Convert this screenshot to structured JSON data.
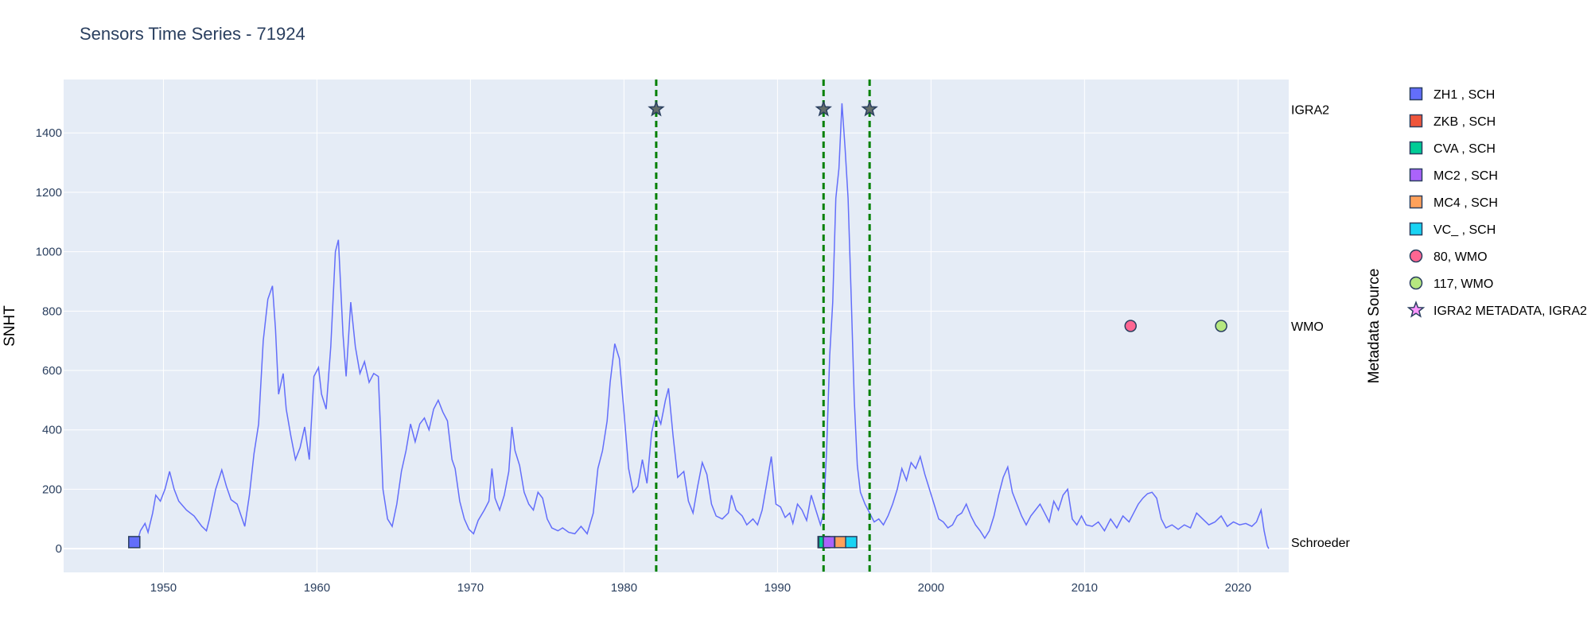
{
  "chart_data": {
    "type": "line",
    "title": "Sensors Time Series - 71924",
    "xlabel": "",
    "ylabel": "SNHT",
    "ylabel_right": "Metadata Source",
    "xlim": [
      1943.5,
      2023.3
    ],
    "ylim": [
      -80,
      1580
    ],
    "x_ticks": [
      1950,
      1960,
      1970,
      1980,
      1990,
      2000,
      2010,
      2020
    ],
    "y_ticks": [
      0,
      200,
      400,
      600,
      800,
      1000,
      1200,
      1400
    ],
    "grid": true,
    "legend_position": "right",
    "source_categories": [
      {
        "label": "IGRA2",
        "y": 1480
      },
      {
        "label": "WMO",
        "y": 750
      },
      {
        "label": "Schroeder",
        "y": 22
      }
    ],
    "series": [
      {
        "name": "SNHT",
        "color": "#636efa",
        "points": [
          [
            1947.9,
            20
          ],
          [
            1948.2,
            5
          ],
          [
            1948.5,
            60
          ],
          [
            1948.8,
            85
          ],
          [
            1949.0,
            55
          ],
          [
            1949.3,
            120
          ],
          [
            1949.5,
            180
          ],
          [
            1949.8,
            160
          ],
          [
            1950.1,
            200
          ],
          [
            1950.4,
            260
          ],
          [
            1950.7,
            200
          ],
          [
            1951.0,
            160
          ],
          [
            1951.5,
            130
          ],
          [
            1952.0,
            110
          ],
          [
            1952.5,
            75
          ],
          [
            1952.8,
            60
          ],
          [
            1953.0,
            100
          ],
          [
            1953.4,
            200
          ],
          [
            1953.8,
            265
          ],
          [
            1954.1,
            210
          ],
          [
            1954.4,
            165
          ],
          [
            1954.8,
            150
          ],
          [
            1955.0,
            120
          ],
          [
            1955.3,
            75
          ],
          [
            1955.6,
            180
          ],
          [
            1955.9,
            320
          ],
          [
            1956.2,
            420
          ],
          [
            1956.5,
            700
          ],
          [
            1956.8,
            840
          ],
          [
            1957.1,
            885
          ],
          [
            1957.3,
            740
          ],
          [
            1957.5,
            520
          ],
          [
            1957.8,
            590
          ],
          [
            1958.0,
            470
          ],
          [
            1958.3,
            380
          ],
          [
            1958.6,
            300
          ],
          [
            1958.9,
            340
          ],
          [
            1959.2,
            410
          ],
          [
            1959.5,
            300
          ],
          [
            1959.8,
            580
          ],
          [
            1960.1,
            610
          ],
          [
            1960.3,
            520
          ],
          [
            1960.6,
            470
          ],
          [
            1960.9,
            680
          ],
          [
            1961.2,
            1000
          ],
          [
            1961.4,
            1040
          ],
          [
            1961.7,
            720
          ],
          [
            1961.9,
            580
          ],
          [
            1962.2,
            830
          ],
          [
            1962.5,
            680
          ],
          [
            1962.8,
            590
          ],
          [
            1963.1,
            630
          ],
          [
            1963.4,
            560
          ],
          [
            1963.7,
            590
          ],
          [
            1964.0,
            580
          ],
          [
            1964.3,
            200
          ],
          [
            1964.6,
            100
          ],
          [
            1964.9,
            75
          ],
          [
            1965.2,
            150
          ],
          [
            1965.5,
            260
          ],
          [
            1965.8,
            330
          ],
          [
            1966.1,
            420
          ],
          [
            1966.4,
            360
          ],
          [
            1966.7,
            420
          ],
          [
            1967.0,
            440
          ],
          [
            1967.3,
            400
          ],
          [
            1967.6,
            470
          ],
          [
            1967.9,
            500
          ],
          [
            1968.2,
            460
          ],
          [
            1968.5,
            430
          ],
          [
            1968.8,
            300
          ],
          [
            1969.0,
            270
          ],
          [
            1969.3,
            160
          ],
          [
            1969.6,
            100
          ],
          [
            1969.9,
            65
          ],
          [
            1970.2,
            50
          ],
          [
            1970.5,
            95
          ],
          [
            1970.9,
            130
          ],
          [
            1971.2,
            160
          ],
          [
            1971.4,
            270
          ],
          [
            1971.6,
            170
          ],
          [
            1971.9,
            130
          ],
          [
            1972.2,
            180
          ],
          [
            1972.5,
            260
          ],
          [
            1972.7,
            410
          ],
          [
            1972.9,
            330
          ],
          [
            1973.2,
            280
          ],
          [
            1973.5,
            190
          ],
          [
            1973.8,
            150
          ],
          [
            1974.1,
            130
          ],
          [
            1974.4,
            190
          ],
          [
            1974.7,
            170
          ],
          [
            1975.0,
            100
          ],
          [
            1975.3,
            70
          ],
          [
            1975.7,
            60
          ],
          [
            1976.0,
            70
          ],
          [
            1976.4,
            55
          ],
          [
            1976.8,
            50
          ],
          [
            1977.2,
            75
          ],
          [
            1977.6,
            50
          ],
          [
            1978.0,
            120
          ],
          [
            1978.3,
            270
          ],
          [
            1978.6,
            330
          ],
          [
            1978.9,
            430
          ],
          [
            1979.1,
            560
          ],
          [
            1979.4,
            690
          ],
          [
            1979.7,
            640
          ],
          [
            1980.0,
            460
          ],
          [
            1980.3,
            270
          ],
          [
            1980.6,
            190
          ],
          [
            1980.9,
            210
          ],
          [
            1981.2,
            300
          ],
          [
            1981.5,
            220
          ],
          [
            1981.8,
            390
          ],
          [
            1982.1,
            460
          ],
          [
            1982.4,
            420
          ],
          [
            1982.7,
            500
          ],
          [
            1982.9,
            540
          ],
          [
            1983.2,
            380
          ],
          [
            1983.5,
            240
          ],
          [
            1983.9,
            260
          ],
          [
            1984.2,
            160
          ],
          [
            1984.5,
            120
          ],
          [
            1984.8,
            210
          ],
          [
            1985.1,
            290
          ],
          [
            1985.4,
            250
          ],
          [
            1985.7,
            150
          ],
          [
            1986.0,
            110
          ],
          [
            1986.4,
            100
          ],
          [
            1986.8,
            120
          ],
          [
            1987.0,
            180
          ],
          [
            1987.3,
            130
          ],
          [
            1987.7,
            110
          ],
          [
            1988.0,
            80
          ],
          [
            1988.4,
            100
          ],
          [
            1988.7,
            80
          ],
          [
            1989.0,
            130
          ],
          [
            1989.3,
            220
          ],
          [
            1989.6,
            310
          ],
          [
            1989.9,
            150
          ],
          [
            1990.2,
            140
          ],
          [
            1990.5,
            105
          ],
          [
            1990.8,
            120
          ],
          [
            1991.0,
            85
          ],
          [
            1991.3,
            150
          ],
          [
            1991.6,
            130
          ],
          [
            1991.9,
            95
          ],
          [
            1992.2,
            180
          ],
          [
            1992.5,
            130
          ],
          [
            1992.8,
            80
          ],
          [
            1993.0,
            120
          ],
          [
            1993.2,
            330
          ],
          [
            1993.4,
            650
          ],
          [
            1993.6,
            830
          ],
          [
            1993.8,
            1180
          ],
          [
            1994.0,
            1280
          ],
          [
            1994.2,
            1500
          ],
          [
            1994.4,
            1350
          ],
          [
            1994.6,
            1180
          ],
          [
            1994.8,
            850
          ],
          [
            1995.0,
            500
          ],
          [
            1995.2,
            280
          ],
          [
            1995.4,
            190
          ],
          [
            1995.7,
            150
          ],
          [
            1996.0,
            120
          ],
          [
            1996.3,
            90
          ],
          [
            1996.6,
            100
          ],
          [
            1996.9,
            80
          ],
          [
            1997.2,
            110
          ],
          [
            1997.5,
            150
          ],
          [
            1997.8,
            200
          ],
          [
            1998.1,
            270
          ],
          [
            1998.4,
            230
          ],
          [
            1998.7,
            290
          ],
          [
            1999.0,
            270
          ],
          [
            1999.3,
            310
          ],
          [
            1999.6,
            250
          ],
          [
            1999.9,
            200
          ],
          [
            2000.2,
            150
          ],
          [
            2000.5,
            100
          ],
          [
            2000.8,
            90
          ],
          [
            2001.1,
            70
          ],
          [
            2001.4,
            80
          ],
          [
            2001.7,
            110
          ],
          [
            2002.0,
            120
          ],
          [
            2002.3,
            150
          ],
          [
            2002.6,
            110
          ],
          [
            2002.9,
            80
          ],
          [
            2003.2,
            60
          ],
          [
            2003.5,
            35
          ],
          [
            2003.8,
            60
          ],
          [
            2004.1,
            110
          ],
          [
            2004.4,
            180
          ],
          [
            2004.7,
            240
          ],
          [
            2005.0,
            275
          ],
          [
            2005.3,
            190
          ],
          [
            2005.6,
            150
          ],
          [
            2005.9,
            110
          ],
          [
            2006.2,
            80
          ],
          [
            2006.5,
            110
          ],
          [
            2006.8,
            130
          ],
          [
            2007.1,
            150
          ],
          [
            2007.4,
            120
          ],
          [
            2007.7,
            90
          ],
          [
            2008.0,
            160
          ],
          [
            2008.3,
            130
          ],
          [
            2008.6,
            180
          ],
          [
            2008.9,
            200
          ],
          [
            2009.2,
            100
          ],
          [
            2009.5,
            80
          ],
          [
            2009.8,
            110
          ],
          [
            2010.1,
            80
          ],
          [
            2010.5,
            75
          ],
          [
            2010.9,
            90
          ],
          [
            2011.3,
            60
          ],
          [
            2011.7,
            100
          ],
          [
            2012.1,
            70
          ],
          [
            2012.5,
            110
          ],
          [
            2012.9,
            90
          ],
          [
            2013.2,
            120
          ],
          [
            2013.5,
            150
          ],
          [
            2013.8,
            170
          ],
          [
            2014.1,
            185
          ],
          [
            2014.4,
            190
          ],
          [
            2014.7,
            170
          ],
          [
            2015.0,
            100
          ],
          [
            2015.3,
            70
          ],
          [
            2015.7,
            80
          ],
          [
            2016.1,
            65
          ],
          [
            2016.5,
            80
          ],
          [
            2016.9,
            70
          ],
          [
            2017.3,
            120
          ],
          [
            2017.7,
            100
          ],
          [
            2018.1,
            80
          ],
          [
            2018.5,
            90
          ],
          [
            2018.9,
            110
          ],
          [
            2019.3,
            75
          ],
          [
            2019.7,
            90
          ],
          [
            2020.1,
            80
          ],
          [
            2020.5,
            85
          ],
          [
            2020.9,
            75
          ],
          [
            2021.2,
            90
          ],
          [
            2021.5,
            130
          ],
          [
            2021.7,
            60
          ],
          [
            2021.9,
            10
          ],
          [
            2022.0,
            0
          ]
        ]
      }
    ],
    "vertical_lines": {
      "color": "#008000",
      "dash": "dashed",
      "x": [
        1982.1,
        1993.0,
        1996.0
      ]
    },
    "metadata_series": [
      {
        "name": "ZH1 , SCH",
        "color": "#636efa",
        "marker": "square",
        "source": "Schroeder",
        "x": [
          1948.1
        ]
      },
      {
        "name": "ZKB , SCH",
        "color": "#ef553b",
        "marker": "square",
        "source": "Schroeder",
        "x": [
          1993.0
        ]
      },
      {
        "name": "CVA , SCH",
        "color": "#00cc96",
        "marker": "square",
        "source": "Schroeder",
        "x": [
          1993.05
        ]
      },
      {
        "name": "MC2 , SCH",
        "color": "#ab63fa",
        "marker": "square",
        "source": "Schroeder",
        "x": [
          1993.35
        ]
      },
      {
        "name": "MC4 , SCH",
        "color": "#ffa15a",
        "marker": "square",
        "source": "Schroeder",
        "x": [
          1994.1
        ]
      },
      {
        "name": "VC_ , SCH",
        "color": "#19d3f3",
        "marker": "square",
        "source": "Schroeder",
        "x": [
          1994.8
        ]
      },
      {
        "name": "80, WMO",
        "color": "#ff6692",
        "marker": "circle",
        "source": "WMO",
        "x": [
          2013.0
        ]
      },
      {
        "name": "117, WMO",
        "color": "#b6e880",
        "marker": "circle",
        "source": "WMO",
        "x": [
          2018.9
        ]
      },
      {
        "name": "IGRA2 METADATA, IGRA2",
        "color": "#636e6a",
        "legend_color": "#ff97ff",
        "marker": "star",
        "source": "IGRA2",
        "x": [
          1982.1,
          1993.0,
          1996.0
        ]
      }
    ]
  }
}
